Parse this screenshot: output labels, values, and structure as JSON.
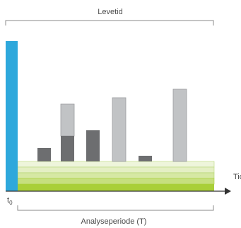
{
  "top_label": "Levetid",
  "bottom_label": "Analyseperiode (T)",
  "axis_label": "Tid",
  "origin_label": {
    "base": "t",
    "subscript": "0"
  },
  "colors": {
    "initial_bar": "#2ea8dc",
    "bar_dark": "#6d6e70",
    "bar_light": "#c1c3c5",
    "bar_outline": "#9a9c9e",
    "green_bands": [
      "#eef5db",
      "#e4efc4",
      "#d6e8a4",
      "#c6df7e",
      "#a9cf38"
    ],
    "axis": "#333333",
    "bracket": "#8a8a8a",
    "text": "#4a4a4a"
  }
}
